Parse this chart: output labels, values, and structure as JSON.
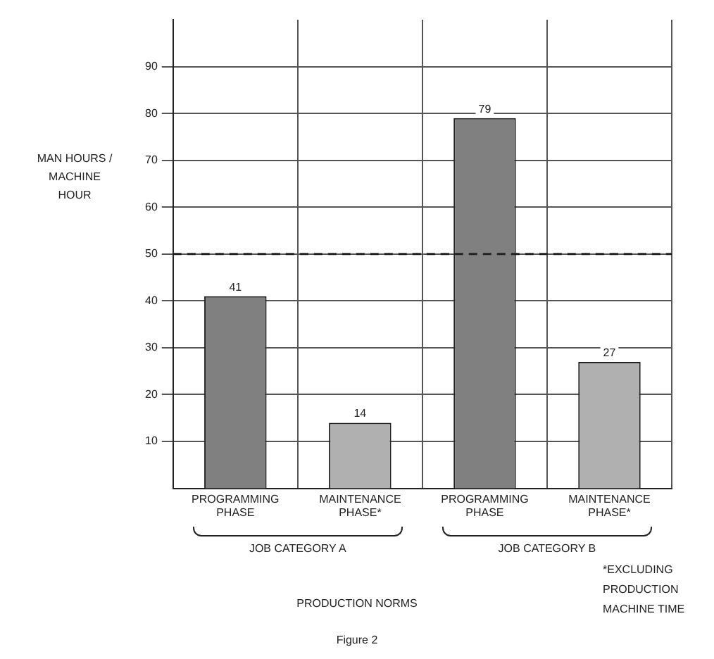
{
  "chart_data": {
    "type": "bar",
    "title": "PRODUCTION NORMS",
    "subtitle": "Figure 2",
    "ylabel": "MAN HOURS / MACHINE HOUR",
    "categories": [
      "PROGRAMMING PHASE",
      "MAINTENANCE PHASE*",
      "PROGRAMMING PHASE",
      "MAINTENANCE PHASE*"
    ],
    "values": [
      41,
      14,
      79,
      27
    ],
    "colors": [
      "#808080",
      "#b0b0b0",
      "#808080",
      "#b0b0b0"
    ],
    "ylim": [
      0,
      100
    ],
    "yticks": [
      10,
      20,
      30,
      40,
      50,
      60,
      70,
      80,
      90
    ],
    "grid": true,
    "data_labels": true,
    "ref_lines": [
      {
        "axis": "y",
        "value": 50,
        "label": null,
        "line_style": "dashed"
      }
    ],
    "annotations": [
      "JOB CATEGORY A",
      "JOB CATEGORY B",
      "*EXCLUDING PRODUCTION MACHINE TIME"
    ]
  }
}
